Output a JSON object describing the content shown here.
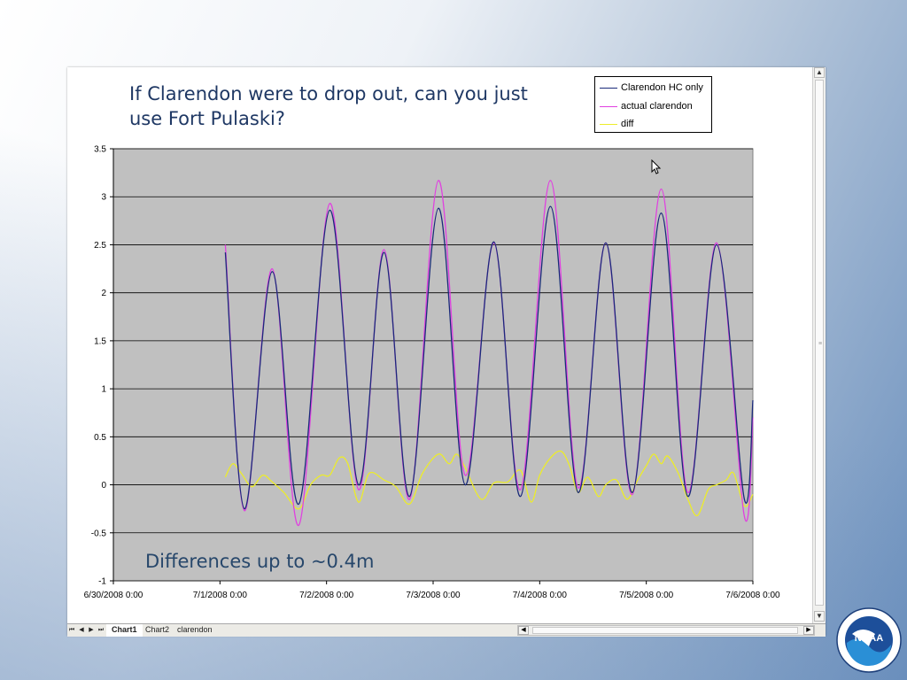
{
  "slide": {
    "title": "If Clarendon were to drop out, can you just use Fort Pulaski?",
    "annotation": "Differences up to ~0.4m"
  },
  "legend": [
    {
      "label": "Clarendon HC only",
      "color": "#1a2a7a"
    },
    {
      "label": "actual clarendon",
      "color": "#e040e0"
    },
    {
      "label": "diff",
      "color": "#ecec2a"
    }
  ],
  "sheet_tabs": [
    "Chart1",
    "Chart2",
    "clarendon"
  ],
  "active_tab": "Chart1",
  "logo_text": "NOAA",
  "colors": {
    "plot_bg": "#c0c0c0",
    "grid": "#000000",
    "title": "#1f3864"
  },
  "chart_data": {
    "type": "line",
    "title": "",
    "xlabel": "",
    "ylabel": "",
    "ylim": [
      -1,
      3.5
    ],
    "yticks": [
      "3.5",
      "3",
      "2.5",
      "2",
      "1.5",
      "1",
      "0.5",
      "0",
      "-0.5",
      "-1"
    ],
    "x_tick_labels": [
      "6/30/2008 0:00",
      "7/1/2008 0:00",
      "7/2/2008 0:00",
      "7/3/2008 0:00",
      "7/4/2008 0:00",
      "7/5/2008 0:00",
      "7/6/2008 0:00"
    ],
    "x_days_range": [
      0,
      6
    ],
    "grid": "horizontal",
    "legend_position": "top-right",
    "series": [
      {
        "name": "Clarendon HC only",
        "color": "#1a2a7a",
        "points": [
          [
            1.05,
            2.42
          ],
          [
            1.23,
            -0.25
          ],
          [
            1.49,
            2.22
          ],
          [
            1.74,
            -0.2
          ],
          [
            2.03,
            2.86
          ],
          [
            2.3,
            0.0
          ],
          [
            2.54,
            2.42
          ],
          [
            2.78,
            -0.12
          ],
          [
            3.05,
            2.88
          ],
          [
            3.3,
            0.0
          ],
          [
            3.57,
            2.53
          ],
          [
            3.82,
            -0.12
          ],
          [
            4.1,
            2.9
          ],
          [
            4.36,
            -0.08
          ],
          [
            4.62,
            2.52
          ],
          [
            4.87,
            -0.08
          ],
          [
            5.14,
            2.83
          ],
          [
            5.39,
            -0.12
          ],
          [
            5.66,
            2.5
          ],
          [
            5.92,
            -0.15
          ],
          [
            6.0,
            0.88
          ]
        ]
      },
      {
        "name": "actual clarendon",
        "color": "#e040e0",
        "points": [
          [
            1.05,
            2.5
          ],
          [
            1.23,
            -0.27
          ],
          [
            1.49,
            2.25
          ],
          [
            1.74,
            -0.42
          ],
          [
            2.03,
            2.93
          ],
          [
            2.3,
            -0.05
          ],
          [
            2.54,
            2.45
          ],
          [
            2.78,
            -0.15
          ],
          [
            3.05,
            3.17
          ],
          [
            3.3,
            0.1
          ],
          [
            3.57,
            2.52
          ],
          [
            3.82,
            -0.05
          ],
          [
            4.1,
            3.17
          ],
          [
            4.36,
            -0.03
          ],
          [
            4.62,
            2.52
          ],
          [
            4.87,
            -0.1
          ],
          [
            5.14,
            3.08
          ],
          [
            5.39,
            -0.08
          ],
          [
            5.66,
            2.52
          ],
          [
            5.92,
            -0.33
          ],
          [
            6.0,
            0.7
          ]
        ]
      },
      {
        "name": "diff",
        "color": "#ecec2a",
        "points": [
          [
            1.05,
            0.08
          ],
          [
            1.12,
            0.22
          ],
          [
            1.2,
            0.12
          ],
          [
            1.3,
            -0.02
          ],
          [
            1.4,
            0.1
          ],
          [
            1.49,
            0.03
          ],
          [
            1.6,
            -0.08
          ],
          [
            1.74,
            -0.25
          ],
          [
            1.85,
            0.0
          ],
          [
            1.95,
            0.1
          ],
          [
            2.03,
            0.1
          ],
          [
            2.12,
            0.28
          ],
          [
            2.2,
            0.22
          ],
          [
            2.3,
            -0.18
          ],
          [
            2.4,
            0.12
          ],
          [
            2.54,
            0.05
          ],
          [
            2.65,
            -0.02
          ],
          [
            2.78,
            -0.2
          ],
          [
            2.9,
            0.12
          ],
          [
            3.05,
            0.32
          ],
          [
            3.15,
            0.22
          ],
          [
            3.22,
            0.32
          ],
          [
            3.3,
            0.18
          ],
          [
            3.45,
            -0.15
          ],
          [
            3.57,
            0.02
          ],
          [
            3.7,
            0.03
          ],
          [
            3.82,
            0.15
          ],
          [
            3.92,
            -0.18
          ],
          [
            4.0,
            0.1
          ],
          [
            4.1,
            0.28
          ],
          [
            4.2,
            0.35
          ],
          [
            4.28,
            0.2
          ],
          [
            4.36,
            -0.08
          ],
          [
            4.45,
            0.08
          ],
          [
            4.55,
            -0.12
          ],
          [
            4.62,
            0.0
          ],
          [
            4.72,
            0.05
          ],
          [
            4.82,
            -0.15
          ],
          [
            4.92,
            0.05
          ],
          [
            5.0,
            0.2
          ],
          [
            5.07,
            0.32
          ],
          [
            5.14,
            0.22
          ],
          [
            5.2,
            0.3
          ],
          [
            5.3,
            0.12
          ],
          [
            5.39,
            -0.15
          ],
          [
            5.48,
            -0.32
          ],
          [
            5.58,
            -0.05
          ],
          [
            5.66,
            0.0
          ],
          [
            5.75,
            0.05
          ],
          [
            5.82,
            0.12
          ],
          [
            5.92,
            -0.22
          ],
          [
            6.0,
            -0.1
          ]
        ]
      }
    ]
  }
}
